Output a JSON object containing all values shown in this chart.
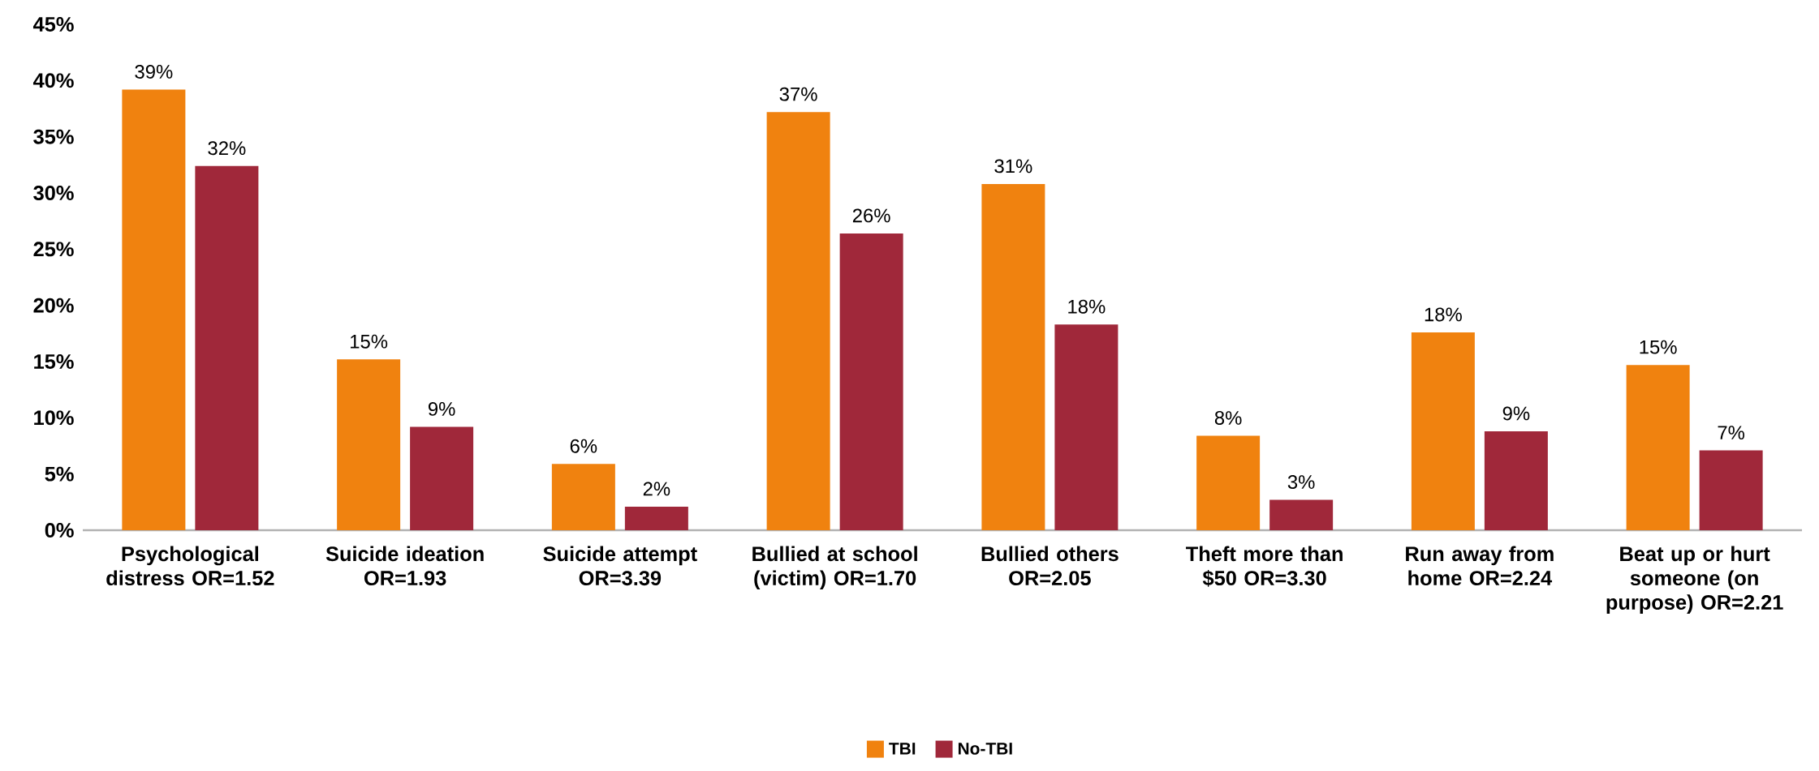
{
  "chart_data": {
    "type": "bar",
    "categories": [
      "Psychological distress OR=1.52",
      "Suicide ideation OR=1.93",
      "Suicide attempt OR=3.39",
      "Bullied at school (victim) OR=1.70",
      "Bullied others OR=2.05",
      "Theft more than $50 OR=3.30",
      "Run away from home OR=2.24",
      "Beat up or hurt someone (on purpose) OR=2.21"
    ],
    "series": [
      {
        "name": "TBI",
        "color": "#f0820f",
        "values": [
          39.2,
          15.2,
          5.9,
          37.2,
          30.8,
          8.4,
          17.6,
          14.7
        ],
        "value_labels": [
          "39%",
          "15%",
          "6%",
          "37%",
          "31%",
          "8%",
          "18%",
          "15%"
        ]
      },
      {
        "name": "No-TBI",
        "color": "#a0283a",
        "values": [
          32.4,
          9.2,
          2.1,
          26.4,
          18.3,
          2.7,
          8.8,
          7.1
        ],
        "value_labels": [
          "32%",
          "9%",
          "2%",
          "26%",
          "18%",
          "3%",
          "9%",
          "7%"
        ]
      }
    ],
    "ylim": [
      0,
      45
    ],
    "yticks": [
      {
        "value": 0,
        "label": "0%"
      },
      {
        "value": 5,
        "label": "5%"
      },
      {
        "value": 10,
        "label": "10%"
      },
      {
        "value": 15,
        "label": "15%"
      },
      {
        "value": 20,
        "label": "20%"
      },
      {
        "value": 25,
        "label": "25%"
      },
      {
        "value": 30,
        "label": "30%"
      },
      {
        "value": 35,
        "label": "35%"
      },
      {
        "value": 40,
        "label": "40%"
      },
      {
        "value": 45,
        "label": "45%"
      }
    ],
    "grid": false,
    "legend": "bottom"
  }
}
